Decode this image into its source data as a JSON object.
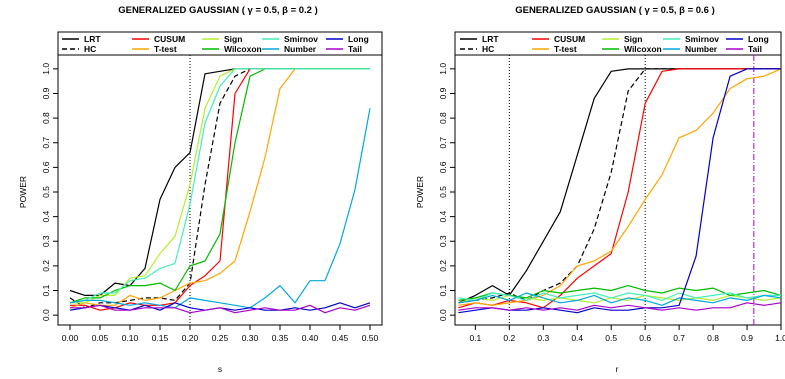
{
  "chart_data": [
    {
      "type": "line",
      "title": "GENERALIZED GAUSSIAN ( γ = 0.5, β = 0.2 )",
      "xlabel": "s",
      "ylabel": "POWER",
      "xlim": [
        -0.02,
        0.52
      ],
      "ylim": [
        -0.04,
        1.04
      ],
      "xticks": [
        "0.00",
        "0.05",
        "0.10",
        "0.15",
        "0.20",
        "0.25",
        "0.30",
        "0.35",
        "0.40",
        "0.45",
        "0.50"
      ],
      "yticks": [
        "0.0",
        "0.1",
        "0.2",
        "0.3",
        "0.4",
        "0.5",
        "0.6",
        "0.7",
        "0.8",
        "0.9",
        "1.0"
      ],
      "vlines": [
        {
          "x": 0.2,
          "style": "dotted",
          "color": "#000000"
        }
      ],
      "legend_position": "top",
      "x": [
        0.0,
        0.025,
        0.05,
        0.075,
        0.1,
        0.125,
        0.15,
        0.175,
        0.2,
        0.225,
        0.25,
        0.275,
        0.3,
        0.325,
        0.35,
        0.375,
        0.4,
        0.425,
        0.45,
        0.475,
        0.5
      ],
      "series": [
        {
          "name": "LRT",
          "color": "#000000",
          "dash": "",
          "values": [
            0.1,
            0.08,
            0.08,
            0.13,
            0.12,
            0.19,
            0.47,
            0.6,
            0.66,
            0.98,
            0.99,
            1.0,
            1.0,
            1.0,
            1.0,
            1.0,
            1.0,
            1.0,
            1.0,
            1.0,
            1.0
          ]
        },
        {
          "name": "HC",
          "color": "#000000",
          "dash": "5,3",
          "values": [
            0.07,
            0.03,
            0.05,
            0.05,
            0.06,
            0.07,
            0.07,
            0.06,
            0.13,
            0.53,
            0.86,
            0.97,
            1.0,
            1.0,
            1.0,
            1.0,
            1.0,
            1.0,
            1.0,
            1.0,
            1.0
          ]
        },
        {
          "name": "CUSUM",
          "color": "#ff0000",
          "dash": "",
          "values": [
            0.04,
            0.04,
            0.02,
            0.03,
            0.05,
            0.04,
            0.04,
            0.05,
            0.12,
            0.16,
            0.22,
            0.9,
            1.0,
            1.0,
            1.0,
            1.0,
            1.0,
            1.0,
            1.0,
            1.0,
            1.0
          ]
        },
        {
          "name": "T-test",
          "color": "#ffa500",
          "dash": "",
          "values": [
            0.03,
            0.05,
            0.04,
            0.04,
            0.08,
            0.06,
            0.07,
            0.1,
            0.13,
            0.14,
            0.17,
            0.22,
            0.42,
            0.64,
            0.92,
            1.0,
            1.0,
            1.0,
            1.0,
            1.0,
            1.0
          ]
        },
        {
          "name": "Sign",
          "color": "#b4ee2e",
          "dash": "",
          "values": [
            0.05,
            0.05,
            0.08,
            0.08,
            0.15,
            0.16,
            0.25,
            0.32,
            0.53,
            0.84,
            0.97,
            1.0,
            1.0,
            1.0,
            1.0,
            1.0,
            1.0,
            1.0,
            1.0,
            1.0,
            1.0
          ]
        },
        {
          "name": "Wilcoxon",
          "color": "#00bb00",
          "dash": "",
          "values": [
            0.05,
            0.07,
            0.07,
            0.1,
            0.12,
            0.12,
            0.13,
            0.1,
            0.2,
            0.22,
            0.33,
            0.7,
            0.97,
            1.0,
            1.0,
            1.0,
            1.0,
            1.0,
            1.0,
            1.0,
            1.0
          ]
        },
        {
          "name": "Smirnov",
          "color": "#44eebb",
          "dash": "",
          "values": [
            0.05,
            0.06,
            0.09,
            0.09,
            0.14,
            0.15,
            0.19,
            0.21,
            0.45,
            0.78,
            0.93,
            1.0,
            1.0,
            1.0,
            1.0,
            1.0,
            1.0,
            1.0,
            1.0,
            1.0,
            1.0
          ]
        },
        {
          "name": "Number",
          "color": "#00a8dd",
          "dash": "",
          "values": [
            0.05,
            0.06,
            0.06,
            0.05,
            0.04,
            0.05,
            0.04,
            0.03,
            0.07,
            0.06,
            0.05,
            0.04,
            0.03,
            0.07,
            0.12,
            0.05,
            0.14,
            0.14,
            0.29,
            0.51,
            0.84
          ]
        },
        {
          "name": "Long",
          "color": "#0000cc",
          "dash": "",
          "values": [
            0.02,
            0.03,
            0.04,
            0.03,
            0.02,
            0.04,
            0.02,
            0.05,
            0.03,
            0.02,
            0.03,
            0.02,
            0.03,
            0.02,
            0.02,
            0.03,
            0.02,
            0.03,
            0.05,
            0.03,
            0.05
          ]
        },
        {
          "name": "Tail",
          "color": "#aa00cc",
          "dash": "",
          "values": [
            0.03,
            0.03,
            0.04,
            0.02,
            0.02,
            0.03,
            0.03,
            0.03,
            0.01,
            0.02,
            0.03,
            0.01,
            0.02,
            0.03,
            0.02,
            0.02,
            0.04,
            0.01,
            0.03,
            0.02,
            0.04
          ]
        }
      ]
    },
    {
      "type": "line",
      "title": "GENERALIZED GAUSSIAN ( γ = 0.5, β = 0.6 )",
      "xlabel": "r",
      "ylabel": "POWER",
      "xlim": [
        0.04,
        1.0
      ],
      "ylim": [
        -0.04,
        1.04
      ],
      "xticks": [
        "0.1",
        "0.2",
        "0.3",
        "0.4",
        "0.5",
        "0.6",
        "0.7",
        "0.8",
        "0.9",
        "1.0"
      ],
      "yticks": [
        "0.0",
        "0.1",
        "0.2",
        "0.3",
        "0.4",
        "0.5",
        "0.6",
        "0.7",
        "0.8",
        "0.9",
        "1.0"
      ],
      "vlines": [
        {
          "x": 0.2,
          "style": "dotted",
          "color": "#000000"
        },
        {
          "x": 0.6,
          "style": "dotted",
          "color": "#000000"
        },
        {
          "x": 0.92,
          "style": "dotdash",
          "color": "#aa00cc"
        }
      ],
      "legend_position": "top",
      "x": [
        0.05,
        0.1,
        0.15,
        0.2,
        0.25,
        0.3,
        0.35,
        0.4,
        0.45,
        0.5,
        0.55,
        0.6,
        0.65,
        0.7,
        0.75,
        0.8,
        0.85,
        0.9,
        0.95,
        1.0
      ],
      "series": [
        {
          "name": "LRT",
          "color": "#000000",
          "dash": "",
          "values": [
            0.05,
            0.08,
            0.12,
            0.08,
            0.18,
            0.3,
            0.42,
            0.65,
            0.88,
            0.99,
            1.0,
            1.0,
            1.0,
            1.0,
            1.0,
            1.0,
            1.0,
            1.0,
            1.0,
            1.0
          ]
        },
        {
          "name": "HC",
          "color": "#000000",
          "dash": "5,3",
          "values": [
            0.05,
            0.06,
            0.07,
            0.09,
            0.06,
            0.1,
            0.13,
            0.2,
            0.35,
            0.58,
            0.91,
            1.0,
            1.0,
            1.0,
            1.0,
            1.0,
            1.0,
            1.0,
            1.0,
            1.0
          ]
        },
        {
          "name": "CUSUM",
          "color": "#ff0000",
          "dash": "",
          "values": [
            0.03,
            0.05,
            0.04,
            0.06,
            0.05,
            0.03,
            0.08,
            0.15,
            0.2,
            0.25,
            0.5,
            0.86,
            0.99,
            1.0,
            1.0,
            1.0,
            1.0,
            1.0,
            1.0,
            1.0
          ]
        },
        {
          "name": "T-test",
          "color": "#ffa500",
          "dash": "",
          "values": [
            0.04,
            0.05,
            0.04,
            0.05,
            0.06,
            0.08,
            0.12,
            0.2,
            0.22,
            0.26,
            0.36,
            0.47,
            0.57,
            0.72,
            0.75,
            0.82,
            0.92,
            0.96,
            0.97,
            1.0
          ]
        },
        {
          "name": "Sign",
          "color": "#b4ee2e",
          "dash": "",
          "values": [
            0.05,
            0.07,
            0.06,
            0.08,
            0.07,
            0.06,
            0.07,
            0.06,
            0.05,
            0.07,
            0.06,
            0.08,
            0.07,
            0.06,
            0.07,
            0.06,
            0.08,
            0.07,
            0.06,
            0.07
          ]
        },
        {
          "name": "Wilcoxon",
          "color": "#00bb00",
          "dash": "",
          "values": [
            0.06,
            0.07,
            0.09,
            0.08,
            0.07,
            0.1,
            0.09,
            0.1,
            0.11,
            0.1,
            0.12,
            0.1,
            0.09,
            0.11,
            0.1,
            0.11,
            0.08,
            0.09,
            0.1,
            0.08
          ]
        },
        {
          "name": "Smirnov",
          "color": "#44eebb",
          "dash": "",
          "values": [
            0.07,
            0.06,
            0.09,
            0.08,
            0.06,
            0.09,
            0.07,
            0.08,
            0.09,
            0.07,
            0.09,
            0.08,
            0.06,
            0.09,
            0.07,
            0.08,
            0.09,
            0.07,
            0.08,
            0.08
          ]
        },
        {
          "name": "Number",
          "color": "#00a8dd",
          "dash": "",
          "values": [
            0.05,
            0.06,
            0.08,
            0.06,
            0.09,
            0.07,
            0.05,
            0.06,
            0.08,
            0.05,
            0.07,
            0.06,
            0.04,
            0.07,
            0.06,
            0.05,
            0.07,
            0.06,
            0.08,
            0.07
          ]
        },
        {
          "name": "Long",
          "color": "#0000cc",
          "dash": "",
          "values": [
            0.01,
            0.02,
            0.03,
            0.02,
            0.02,
            0.03,
            0.02,
            0.01,
            0.03,
            0.02,
            0.02,
            0.03,
            0.03,
            0.04,
            0.24,
            0.72,
            0.97,
            1.0,
            1.0,
            1.0
          ]
        },
        {
          "name": "Tail",
          "color": "#aa00cc",
          "dash": "",
          "values": [
            0.02,
            0.03,
            0.03,
            0.02,
            0.03,
            0.02,
            0.03,
            0.02,
            0.04,
            0.03,
            0.04,
            0.03,
            0.02,
            0.03,
            0.02,
            0.03,
            0.03,
            0.05,
            0.04,
            0.05
          ]
        }
      ]
    }
  ]
}
